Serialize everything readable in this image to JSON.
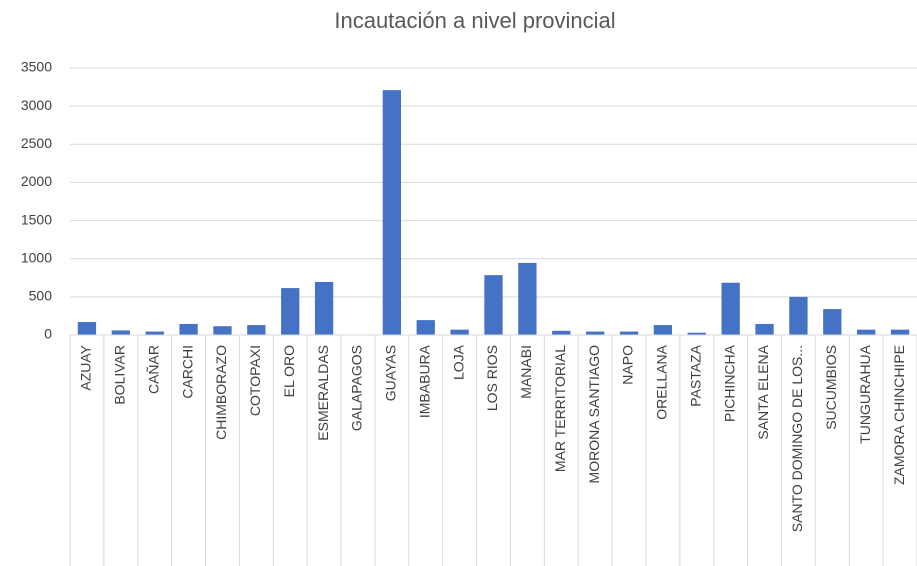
{
  "chart_data": {
    "type": "bar",
    "title": "Incautación a nivel provincial",
    "categories": [
      "AZUAY",
      "BOLIVAR",
      "CAÑAR",
      "CARCHI",
      "CHIMBORAZO",
      "COTOPAXI",
      "EL ORO",
      "ESMERALDAS",
      "GALAPAGOS",
      "GUAYAS",
      "IMBABURA",
      "LOJA",
      "LOS RIOS",
      "MANABI",
      "MAR TERRITORIAL",
      "MORONA SANTIAGO",
      "NAPO",
      "ORELLANA",
      "PASTAZA",
      "PICHINCHA",
      "SANTA ELENA",
      "SANTO DOMINGO DE LOS...",
      "SUCUMBIOS",
      "TUNGURAHUA",
      "ZAMORA CHINCHIPE"
    ],
    "values": [
      170,
      60,
      45,
      145,
      115,
      130,
      615,
      695,
      0,
      3210,
      195,
      70,
      785,
      945,
      55,
      45,
      45,
      130,
      30,
      685,
      145,
      500,
      340,
      70,
      70
    ],
    "color": "#4472c4",
    "ylim": [
      0,
      3500
    ],
    "yticks": [
      0,
      500,
      1000,
      1500,
      2000,
      2500,
      3000,
      3500
    ],
    "grid": true
  }
}
